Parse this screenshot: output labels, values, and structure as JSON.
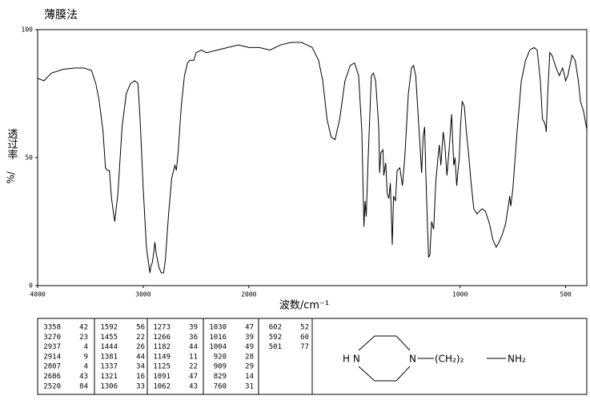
{
  "chart_data": {
    "type": "line",
    "title": "薄膜法",
    "xlabel": "波数/cm⁻¹",
    "ylabel": "透过率",
    "ylabel_unit": "%/",
    "xlim": [
      4000,
      400
    ],
    "ylim": [
      0,
      100
    ],
    "xticks": [
      4000,
      3000,
      2000,
      1000,
      500
    ],
    "yticks": [
      0,
      50,
      100
    ],
    "color": "#000000",
    "x": [
      4000,
      3940,
      3870,
      3760,
      3650,
      3560,
      3490,
      3450,
      3420,
      3380,
      3358,
      3340,
      3320,
      3300,
      3270,
      3240,
      3200,
      3160,
      3120,
      3080,
      3050,
      3030,
      3000,
      2970,
      2937,
      2925,
      2914,
      2900,
      2890,
      2875,
      2850,
      2830,
      2807,
      2790,
      2760,
      2730,
      2700,
      2686,
      2670,
      2640,
      2610,
      2580,
      2560,
      2520,
      2500,
      2450,
      2400,
      2300,
      2200,
      2100,
      2000,
      1950,
      1900,
      1850,
      1800,
      1750,
      1700,
      1670,
      1650,
      1630,
      1610,
      1592,
      1570,
      1545,
      1520,
      1500,
      1480,
      1465,
      1455,
      1450,
      1444,
      1435,
      1420,
      1410,
      1400,
      1385,
      1381,
      1375,
      1365,
      1361,
      1352,
      1345,
      1337,
      1330,
      1321,
      1315,
      1306,
      1298,
      1285,
      1273,
      1262,
      1245,
      1230,
      1220,
      1210,
      1195,
      1182,
      1175,
      1168,
      1162,
      1155,
      1149,
      1143,
      1135,
      1125,
      1115,
      1105,
      1098,
      1091,
      1080,
      1072,
      1062,
      1050,
      1040,
      1030,
      1024,
      1016,
      1010,
      1004,
      998,
      990,
      980,
      970,
      960,
      950,
      935,
      920,
      909,
      895,
      880,
      860,
      845,
      829,
      815,
      800,
      785,
      770,
      765,
      760,
      750,
      730,
      710,
      690,
      670,
      650,
      635,
      620,
      610,
      602,
      595,
      592,
      585,
      575,
      565,
      545,
      530,
      515,
      505,
      501,
      490,
      470,
      455,
      440,
      430,
      415,
      400
    ],
    "values": [
      81,
      80,
      83,
      84.5,
      85,
      85,
      84,
      79,
      73,
      60,
      46,
      45,
      45,
      34,
      25,
      36,
      62,
      75,
      79,
      80,
      79,
      65,
      38,
      15,
      5,
      8,
      9,
      13,
      17,
      12,
      7,
      5,
      5,
      10,
      28,
      42,
      47,
      45,
      52,
      70,
      82,
      87,
      88,
      88,
      91,
      92,
      91,
      92,
      93,
      94,
      93,
      93,
      92,
      94,
      95,
      95,
      93,
      88,
      80,
      65,
      58,
      57,
      65,
      80,
      86,
      87,
      82,
      60,
      23,
      33,
      27,
      50,
      82,
      83,
      80,
      62,
      44,
      52,
      53,
      43,
      48,
      36,
      34,
      40,
      16,
      35,
      33,
      45,
      46,
      39,
      50,
      75,
      85,
      86,
      82,
      62,
      44,
      58,
      62,
      44,
      25,
      11,
      12,
      25,
      22,
      40,
      50,
      55,
      47,
      60,
      55,
      43,
      55,
      67,
      47,
      50,
      39,
      45,
      49,
      62,
      72,
      70,
      60,
      52,
      42,
      30,
      28,
      29,
      30,
      29,
      24,
      18,
      15,
      17,
      20,
      24,
      32,
      35,
      31,
      38,
      60,
      80,
      88,
      92,
      93,
      92,
      80,
      65,
      64,
      62,
      60,
      75,
      91,
      90,
      85,
      82,
      85,
      82,
      80,
      82,
      90,
      88,
      80,
      72,
      68,
      61
    ]
  },
  "peak_table": [
    [
      [
        3358,
        42
      ],
      [
        3270,
        23
      ],
      [
        2937,
        4
      ],
      [
        2914,
        9
      ],
      [
        2807,
        4
      ],
      [
        2686,
        43
      ],
      [
        2520,
        84
      ]
    ],
    [
      [
        1592,
        56
      ],
      [
        1455,
        22
      ],
      [
        1444,
        26
      ],
      [
        1381,
        44
      ],
      [
        1337,
        34
      ],
      [
        1321,
        16
      ],
      [
        1306,
        33
      ]
    ],
    [
      [
        1273,
        39
      ],
      [
        1266,
        36
      ],
      [
        1182,
        44
      ],
      [
        1149,
        11
      ],
      [
        1125,
        22
      ],
      [
        1091,
        47
      ],
      [
        1062,
        43
      ]
    ],
    [
      [
        1030,
        47
      ],
      [
        1016,
        39
      ],
      [
        1004,
        49
      ],
      [
        920,
        28
      ],
      [
        909,
        29
      ],
      [
        829,
        14
      ],
      [
        760,
        31
      ]
    ],
    [
      [
        602,
        52
      ],
      [
        592,
        60
      ],
      [
        501,
        77
      ]
    ]
  ],
  "structure": {
    "labels": [
      "H N",
      "N",
      "(CH₂)₂",
      "NH₂"
    ]
  }
}
